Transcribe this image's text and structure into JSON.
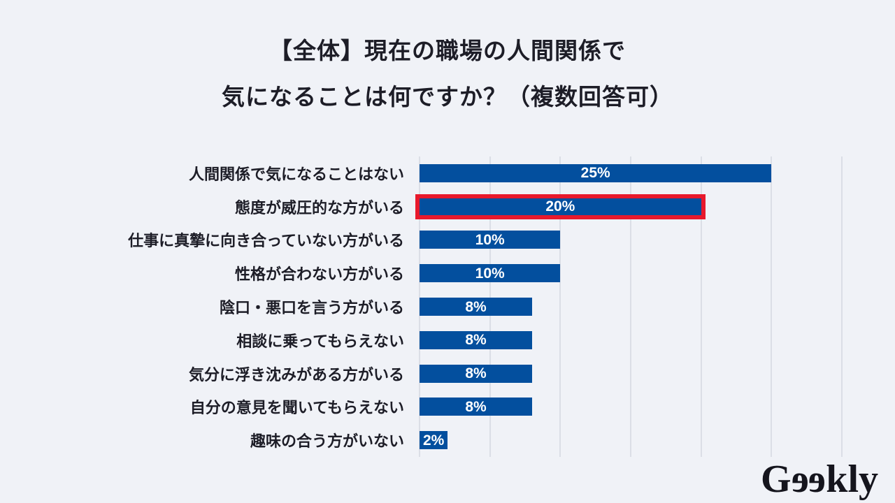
{
  "page": {
    "background": "#F0F2F7"
  },
  "title": {
    "line1": "【全体】現在の職場の人間関係で",
    "line2": "気になることは何ですか？（複数回答可）"
  },
  "chart_data": {
    "type": "bar",
    "orientation": "horizontal",
    "title": "【全体】現在の職場の人間関係で気になることは何ですか？（複数回答可）",
    "categories": [
      "人間関係で気になることはない",
      "態度が威圧的な方がいる",
      "仕事に真摯に向き合っていない方がいる",
      "性格が合わない方がいる",
      "陰口・悪口を言う方がいる",
      "相談に乗ってもらえない",
      "気分に浮き沈みがある方がいる",
      "自分の意見を聞いてもらえない",
      "趣味の合う方がいない"
    ],
    "values": [
      25,
      20,
      10,
      10,
      8,
      8,
      8,
      8,
      2
    ],
    "value_labels": [
      "25%",
      "20%",
      "10%",
      "10%",
      "8%",
      "8%",
      "8%",
      "8%",
      "2%"
    ],
    "highlighted_index": 1,
    "xlim": [
      0,
      30
    ],
    "gridline_interval": 5,
    "grid": true,
    "legend_position": "none",
    "colors": {
      "bar": "#034F9E",
      "highlight_border": "#E8192C",
      "value_label": "#FFFFFF",
      "category_label": "#1D1D27",
      "gridline": "#DBDEE6",
      "background": "#F0F2F7"
    }
  },
  "logo": {
    "text": "Geekly",
    "parts": [
      "G",
      "e",
      "e",
      "kly"
    ],
    "reversed_e": true,
    "color": "#15151D"
  }
}
